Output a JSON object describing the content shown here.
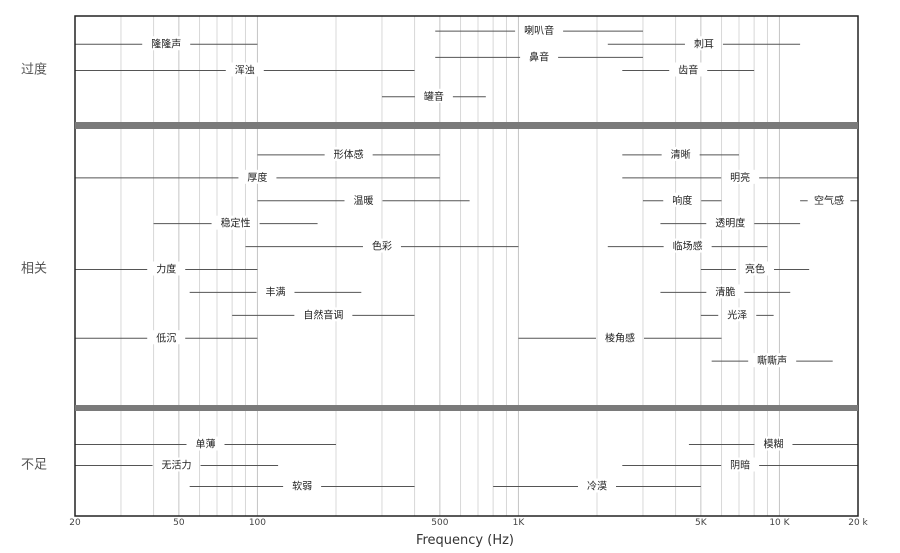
{
  "chart_data": {
    "type": "range",
    "xlabel": "Frequency (Hz)",
    "x_scale": "log",
    "xlim": [
      20,
      20000
    ],
    "grid": true,
    "x_ticks": [
      {
        "value": 20,
        "label": "20"
      },
      {
        "value": 50,
        "label": "50"
      },
      {
        "value": 100,
        "label": "100"
      },
      {
        "value": 500,
        "label": "500"
      },
      {
        "value": 1000,
        "label": "1K"
      },
      {
        "value": 5000,
        "label": "5K"
      },
      {
        "value": 10000,
        "label": "10 K"
      },
      {
        "value": 20000,
        "label": "20 k"
      }
    ],
    "minor_grid": [
      30,
      40,
      60,
      70,
      80,
      90,
      200,
      300,
      400,
      600,
      700,
      800,
      900,
      2000,
      3000,
      4000,
      6000,
      7000,
      8000,
      9000
    ],
    "groups": [
      {
        "name": "过度",
        "rows": 4,
        "items": [
          {
            "label": "隆隆声",
            "from": 20,
            "to": 100,
            "row": 0.5
          },
          {
            "label": "喇叭音",
            "from": 480,
            "to": 3000,
            "row": 0
          },
          {
            "label": "刺耳",
            "from": 2200,
            "to": 12000,
            "row": 0.5
          },
          {
            "label": "鼻音",
            "from": 480,
            "to": 3000,
            "row": 1
          },
          {
            "label": "浑浊",
            "from": 20,
            "to": 400,
            "row": 1.5
          },
          {
            "label": "齿音",
            "from": 2500,
            "to": 8000,
            "row": 1.5
          },
          {
            "label": "罐音",
            "from": 300,
            "to": 750,
            "row": 2.5
          }
        ]
      },
      {
        "name": "相关",
        "rows": 12,
        "items": [
          {
            "label": "形体感",
            "from": 100,
            "to": 500,
            "row": 0.5
          },
          {
            "label": "清晰",
            "from": 2500,
            "to": 7000,
            "row": 0.5
          },
          {
            "label": "厚度",
            "from": 20,
            "to": 500,
            "row": 1.5
          },
          {
            "label": "明亮",
            "from": 2500,
            "to": 20000,
            "row": 1.5
          },
          {
            "label": "温暖",
            "from": 100,
            "to": 650,
            "row": 2.5
          },
          {
            "label": "响度",
            "from": 3000,
            "to": 6000,
            "row": 2.5
          },
          {
            "label": "空气感",
            "from": 12000,
            "to": 20000,
            "row": 2.5
          },
          {
            "label": "稳定性",
            "from": 40,
            "to": 170,
            "row": 3.5
          },
          {
            "label": "透明度",
            "from": 3500,
            "to": 12000,
            "row": 3.5
          },
          {
            "label": "色彩",
            "from": 90,
            "to": 1000,
            "row": 4.5
          },
          {
            "label": "临场感",
            "from": 2200,
            "to": 9000,
            "row": 4.5
          },
          {
            "label": "力度",
            "from": 20,
            "to": 100,
            "row": 5.5
          },
          {
            "label": "亮色",
            "from": 5000,
            "to": 13000,
            "row": 5.5
          },
          {
            "label": "丰满",
            "from": 55,
            "to": 250,
            "row": 6.5
          },
          {
            "label": "清脆",
            "from": 3500,
            "to": 11000,
            "row": 6.5
          },
          {
            "label": "自然音调",
            "from": 80,
            "to": 400,
            "row": 7.5
          },
          {
            "label": "光泽",
            "from": 5000,
            "to": 9500,
            "row": 7.5
          },
          {
            "label": "低沉",
            "from": 20,
            "to": 100,
            "row": 8.5
          },
          {
            "label": "棱角感",
            "from": 1000,
            "to": 6000,
            "row": 8.5
          },
          {
            "label": "嘶嘶声",
            "from": 5500,
            "to": 16000,
            "row": 9.5
          }
        ]
      },
      {
        "name": "不足",
        "rows": 5,
        "items": [
          {
            "label": "单薄",
            "from": 20,
            "to": 200,
            "row": 1
          },
          {
            "label": "模糊",
            "from": 4500,
            "to": 20000,
            "row": 1
          },
          {
            "label": "无活力",
            "from": 20,
            "to": 120,
            "row": 2
          },
          {
            "label": "阴暗",
            "from": 2500,
            "to": 20000,
            "row": 2
          },
          {
            "label": "软弱",
            "from": 55,
            "to": 400,
            "row": 3
          },
          {
            "label": "冷漠",
            "from": 800,
            "to": 5000,
            "row": 3
          }
        ]
      }
    ]
  }
}
